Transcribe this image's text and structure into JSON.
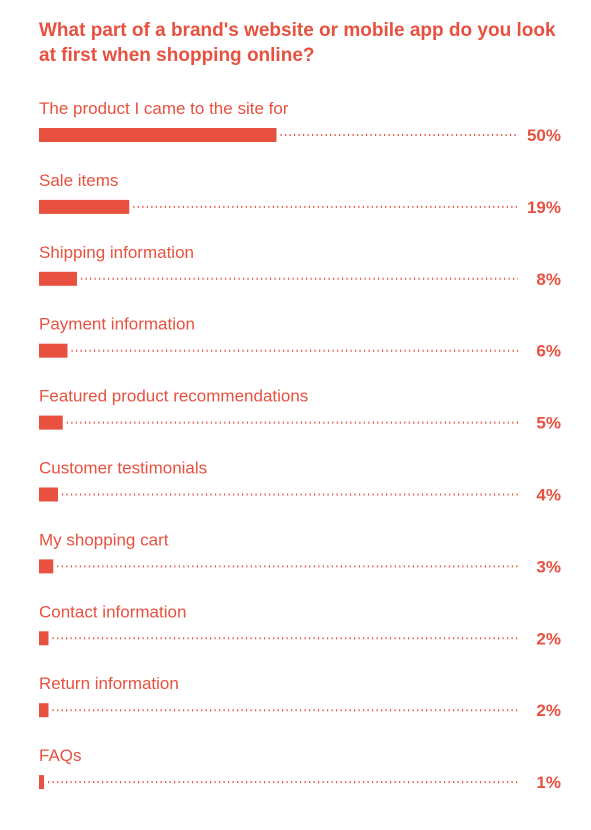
{
  "colors": {
    "accent": "#e8503f",
    "background": "#ffffff"
  },
  "chart_data": {
    "type": "bar",
    "orientation": "horizontal",
    "title": "What part of a brand's website or mobile app do you look at first when shopping online?",
    "categories": [
      "The product I came to the site for",
      "Sale items",
      "Shipping information",
      "Payment information",
      "Featured product recommendations",
      "Customer testimonials",
      "My shopping cart",
      "Contact information",
      "Return information",
      "FAQs"
    ],
    "values": [
      50,
      19,
      8,
      6,
      5,
      4,
      3,
      2,
      2,
      1
    ],
    "value_labels": [
      "50%",
      "19%",
      "8%",
      "6%",
      "5%",
      "4%",
      "3%",
      "2%",
      "2%",
      "1%"
    ],
    "unit": "%",
    "xlim": [
      0,
      100
    ],
    "grid": false,
    "legend": "none"
  }
}
